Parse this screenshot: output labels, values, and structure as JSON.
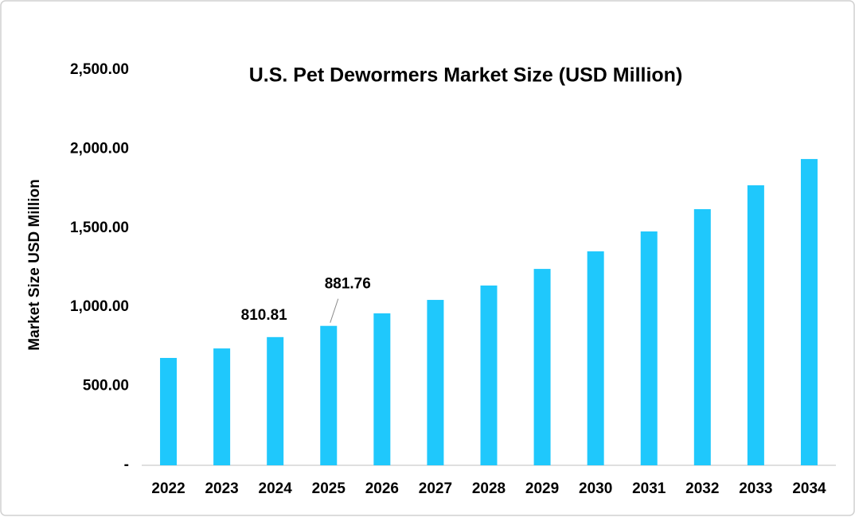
{
  "chart_data": {
    "type": "bar",
    "title": "U.S. Pet Dewormers Market Size (USD Million)",
    "y_label": "Market Size USD Million",
    "categories": [
      "2022",
      "2023",
      "2024",
      "2025",
      "2026",
      "2027",
      "2028",
      "2029",
      "2030",
      "2031",
      "2032",
      "2033",
      "2034"
    ],
    "values": [
      679,
      739,
      810.81,
      881.76,
      961,
      1046,
      1137,
      1242,
      1353,
      1479,
      1620,
      1771,
      1937
    ],
    "value_labels": [
      null,
      null,
      "810.81",
      "881.76",
      null,
      null,
      null,
      null,
      null,
      null,
      null,
      null,
      null
    ],
    "color": "#1fc8fc",
    "ylim": [
      0,
      2500
    ],
    "yticks": [
      {
        "value": 0,
        "label": "-"
      },
      {
        "value": 500,
        "label": "500.00"
      },
      {
        "value": 1000,
        "label": "1,000.00"
      },
      {
        "value": 1500,
        "label": "1,500.00"
      },
      {
        "value": 2000,
        "label": "2,000.00"
      },
      {
        "value": 2500,
        "label": "2,500.00"
      }
    ],
    "grid": false
  }
}
